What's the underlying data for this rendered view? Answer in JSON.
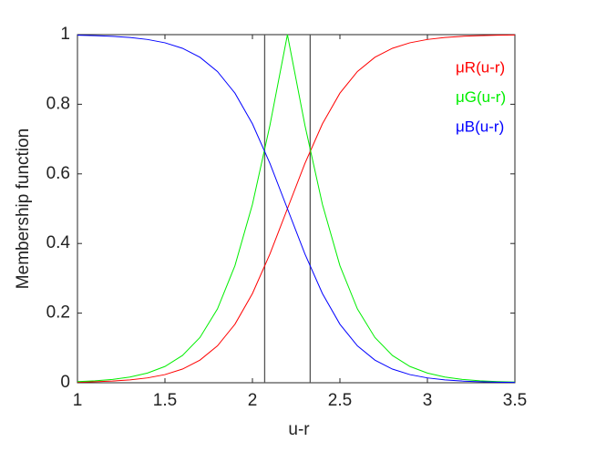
{
  "chart_data": {
    "type": "line",
    "xlabel": "u-r",
    "ylabel": "Membership function",
    "x": [
      1.0,
      1.1,
      1.2,
      1.3,
      1.4,
      1.5,
      1.6,
      1.7,
      1.8,
      1.9,
      2.0,
      2.1,
      2.2,
      2.3,
      2.4,
      2.5,
      2.6,
      2.7,
      2.8,
      2.9,
      3.0,
      3.1,
      3.2,
      3.3,
      3.4,
      3.5
    ],
    "series": [
      {
        "name": "μR(u-r)",
        "color": "#ff0000",
        "values": [
          0.0017,
          0.0028,
          0.0048,
          0.0082,
          0.0139,
          0.0234,
          0.0392,
          0.065,
          0.106,
          0.1681,
          0.2562,
          0.3698,
          0.5,
          0.6302,
          0.7438,
          0.8319,
          0.894,
          0.935,
          0.9608,
          0.9766,
          0.9861,
          0.9918,
          0.9952,
          0.9972,
          0.9983,
          0.999
        ]
      },
      {
        "name": "μG(u-r)",
        "color": "#00ee00",
        "values": [
          0.0034,
          0.0056,
          0.0096,
          0.0164,
          0.0278,
          0.0468,
          0.0784,
          0.13,
          0.212,
          0.3362,
          0.5124,
          0.7396,
          1,
          0.7396,
          0.5124,
          0.3362,
          0.212,
          0.13,
          0.0784,
          0.0468,
          0.0278,
          0.0164,
          0.0096,
          0.0056,
          0.0034,
          0.002
        ]
      },
      {
        "name": "μB(u-r)",
        "color": "#0000ff",
        "values": [
          0.9983,
          0.9972,
          0.9952,
          0.9918,
          0.9861,
          0.9766,
          0.9608,
          0.935,
          0.894,
          0.8319,
          0.7438,
          0.6302,
          0.5,
          0.3698,
          0.2562,
          0.1681,
          0.106,
          0.065,
          0.0392,
          0.0234,
          0.0139,
          0.0082,
          0.0048,
          0.0028,
          0.0017,
          0.001
        ]
      }
    ],
    "vlines": [
      2.07,
      2.33
    ],
    "vline_color": "#555555",
    "xlim": [
      1,
      3.5
    ],
    "xticks": [
      1,
      1.5,
      2,
      2.5,
      3,
      3.5
    ],
    "ylim": [
      0,
      1
    ],
    "yticks": [
      0,
      0.2,
      0.4,
      0.6,
      0.8,
      1
    ],
    "grid": false,
    "legend": "upper right"
  }
}
